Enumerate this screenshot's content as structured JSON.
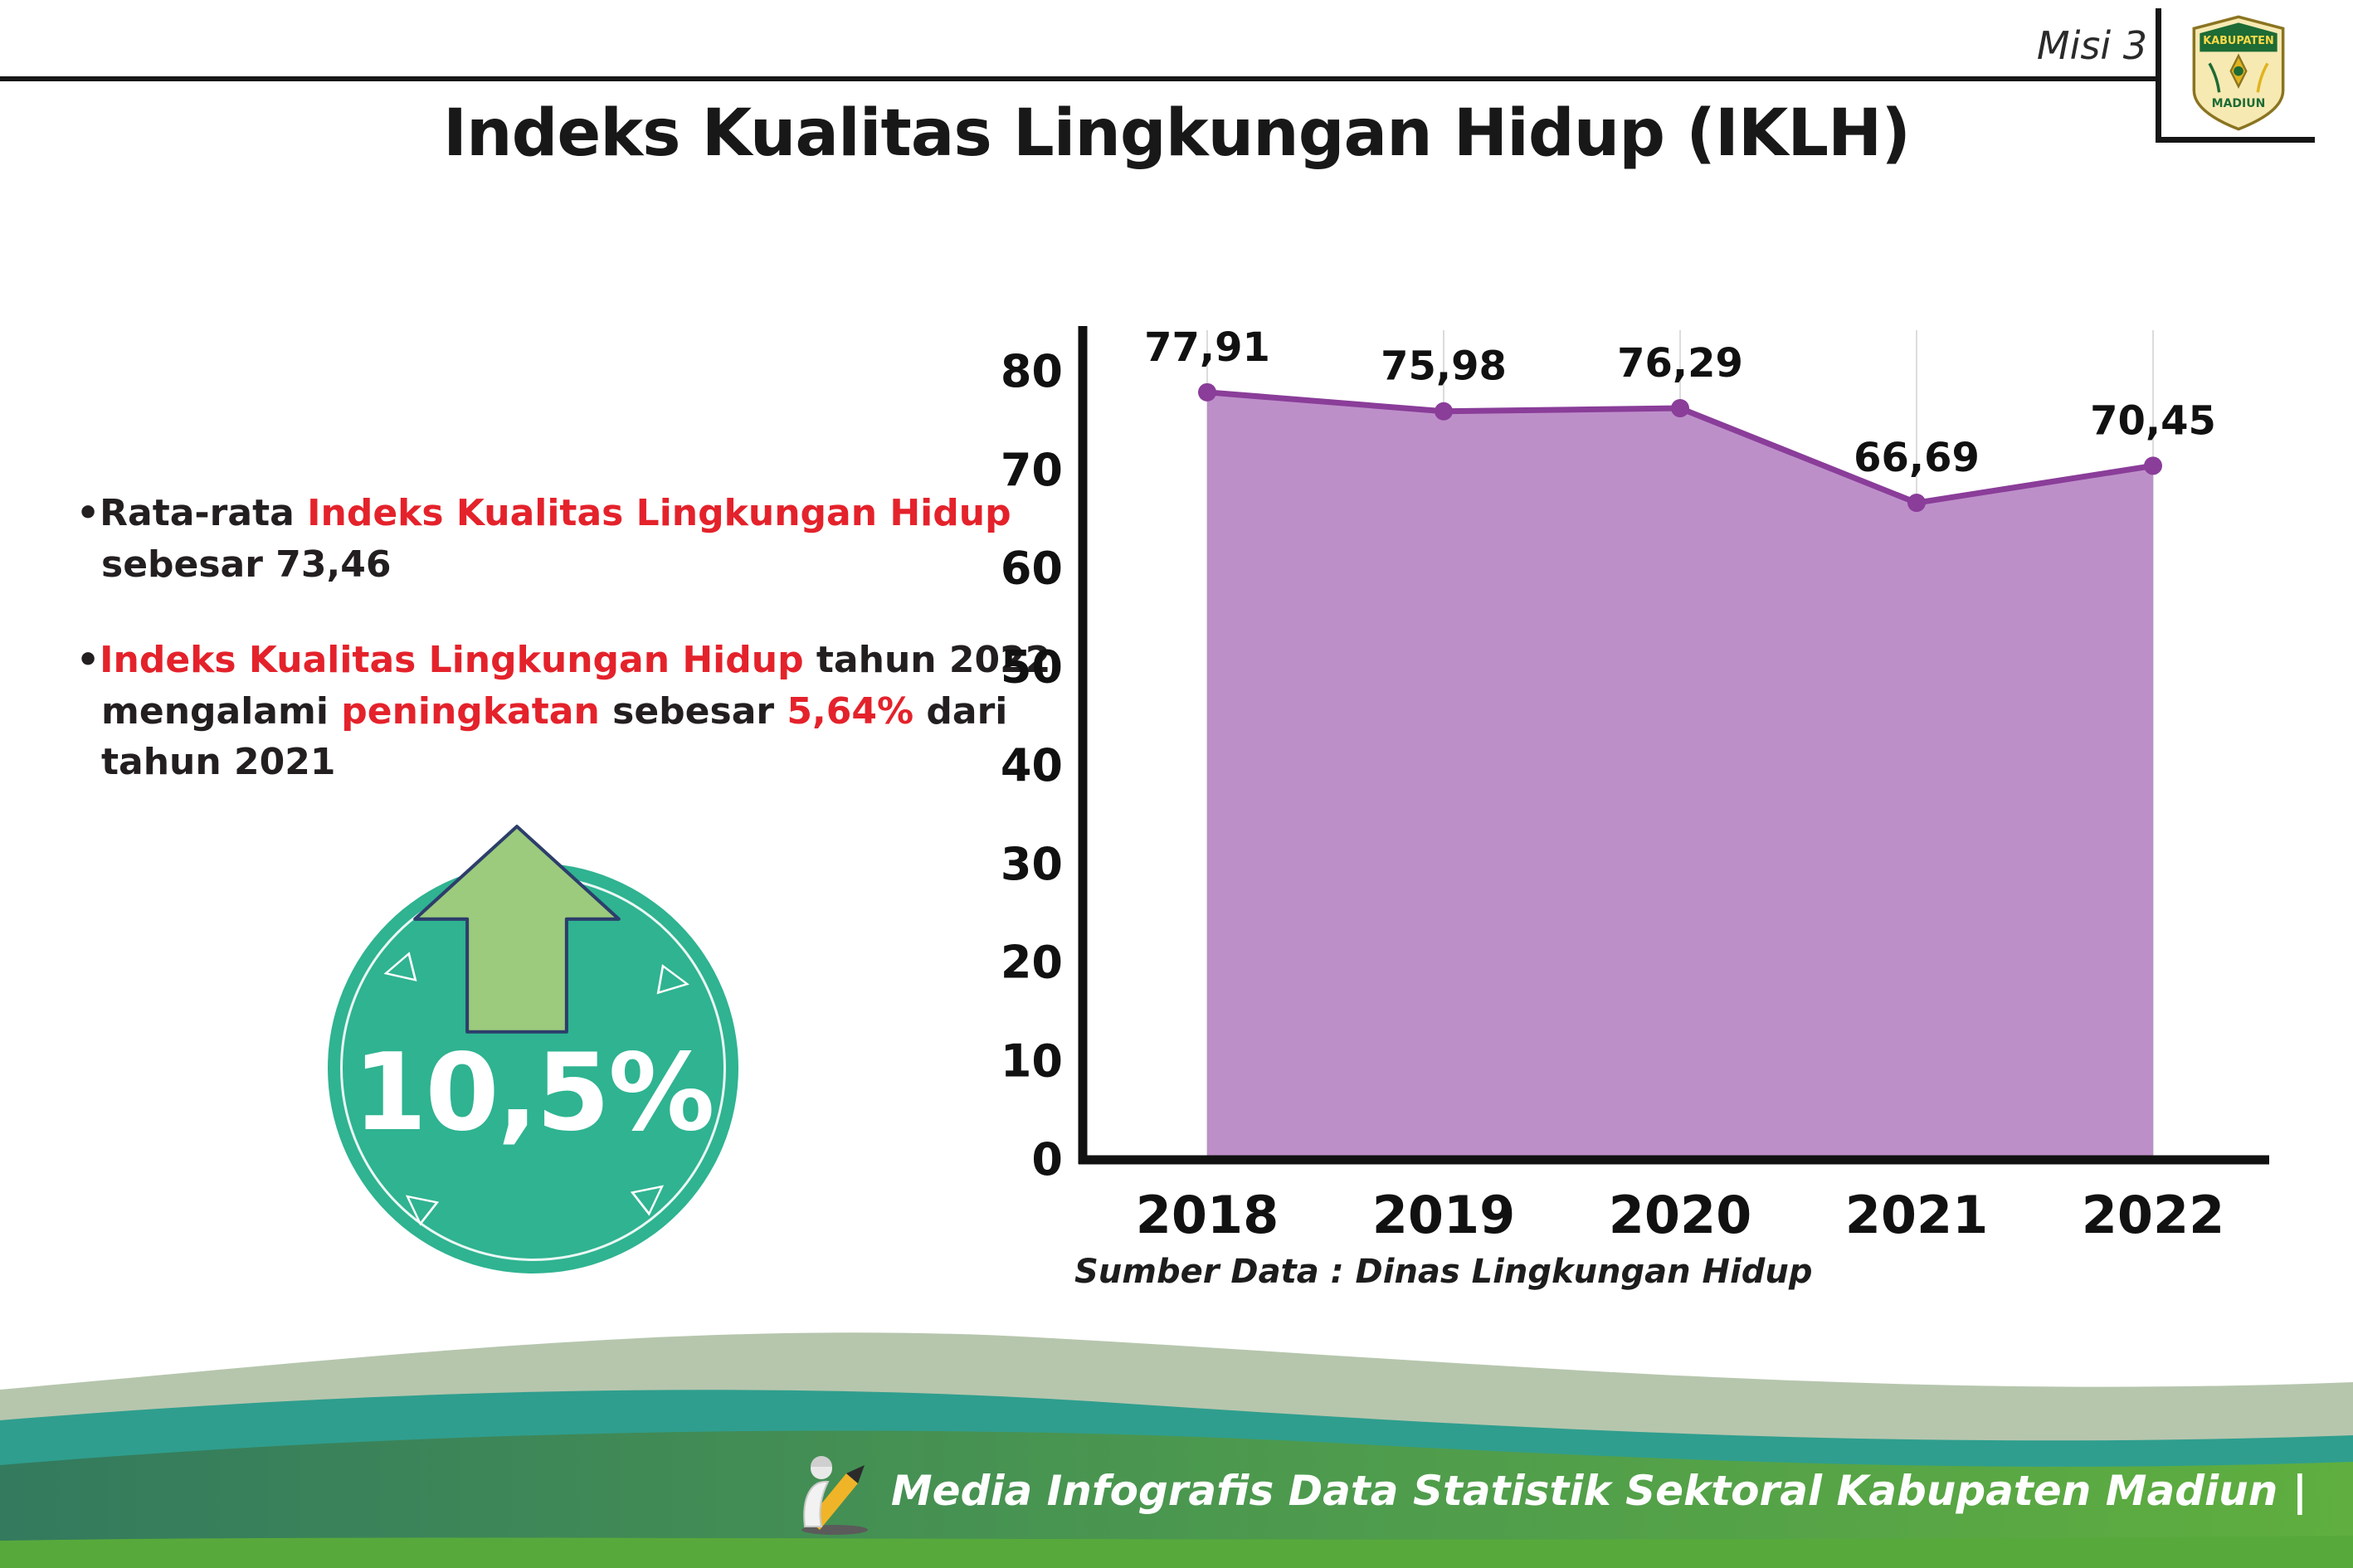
{
  "header": {
    "misi": "Misi 3",
    "title": "Indeks Kualitas Lingkungan Hidup (IKLH)"
  },
  "logo": {
    "line1": "KABUPATEN",
    "line2": "MADIUN"
  },
  "bullets": {
    "glyph": "•",
    "b1": [
      "Rata-rata ",
      "Indeks Kualitas Lingkungan Hidup",
      " sebesar 73,46"
    ],
    "b2": [
      "Indeks Kualitas Lingkungan Hidup",
      " tahun 2022 mengalami ",
      "peningkatan",
      " sebesar ",
      "5,64%",
      " dari tahun 2021"
    ]
  },
  "badge": {
    "value": "10,5%",
    "triangles": [
      "◁",
      "▷",
      "◁",
      "▷"
    ]
  },
  "chart_data": {
    "type": "area",
    "title": "Indeks Kualitas Lingkungan Hidup (IKLH)",
    "categories": [
      "2018",
      "2019",
      "2020",
      "2021",
      "2022"
    ],
    "values": [
      77.91,
      75.98,
      76.29,
      66.69,
      70.45
    ],
    "value_labels": [
      "77,91",
      "75,98",
      "76,29",
      "66,69",
      "70,45"
    ],
    "ylim": [
      0,
      80
    ],
    "ytick_step": 10,
    "grid": "vertical-light",
    "legend": "none",
    "source_note": "Sumber Data : Dinas Lingkungan Hidup",
    "colors": {
      "area": "#bd8fc9",
      "line": "#8a3d99",
      "dot": "#8a3d99",
      "axis": "#111111",
      "grid": "#dcdcdc",
      "label": "#111111"
    }
  },
  "footer": {
    "credit": "Media Infografis Data Statistik Sektoral Kabupaten Madiun |"
  },
  "colors": {
    "accent_red": "#e4222b",
    "text_dark": "#231f20",
    "badge_teal": "#2fb391",
    "arrow_green": "#9ccb7d",
    "arrow_outline": "#2c3e6b",
    "footer_sage": "#b6c6ad",
    "footer_teal": "#2f9e8e",
    "footer_strip": "#58a93c"
  }
}
